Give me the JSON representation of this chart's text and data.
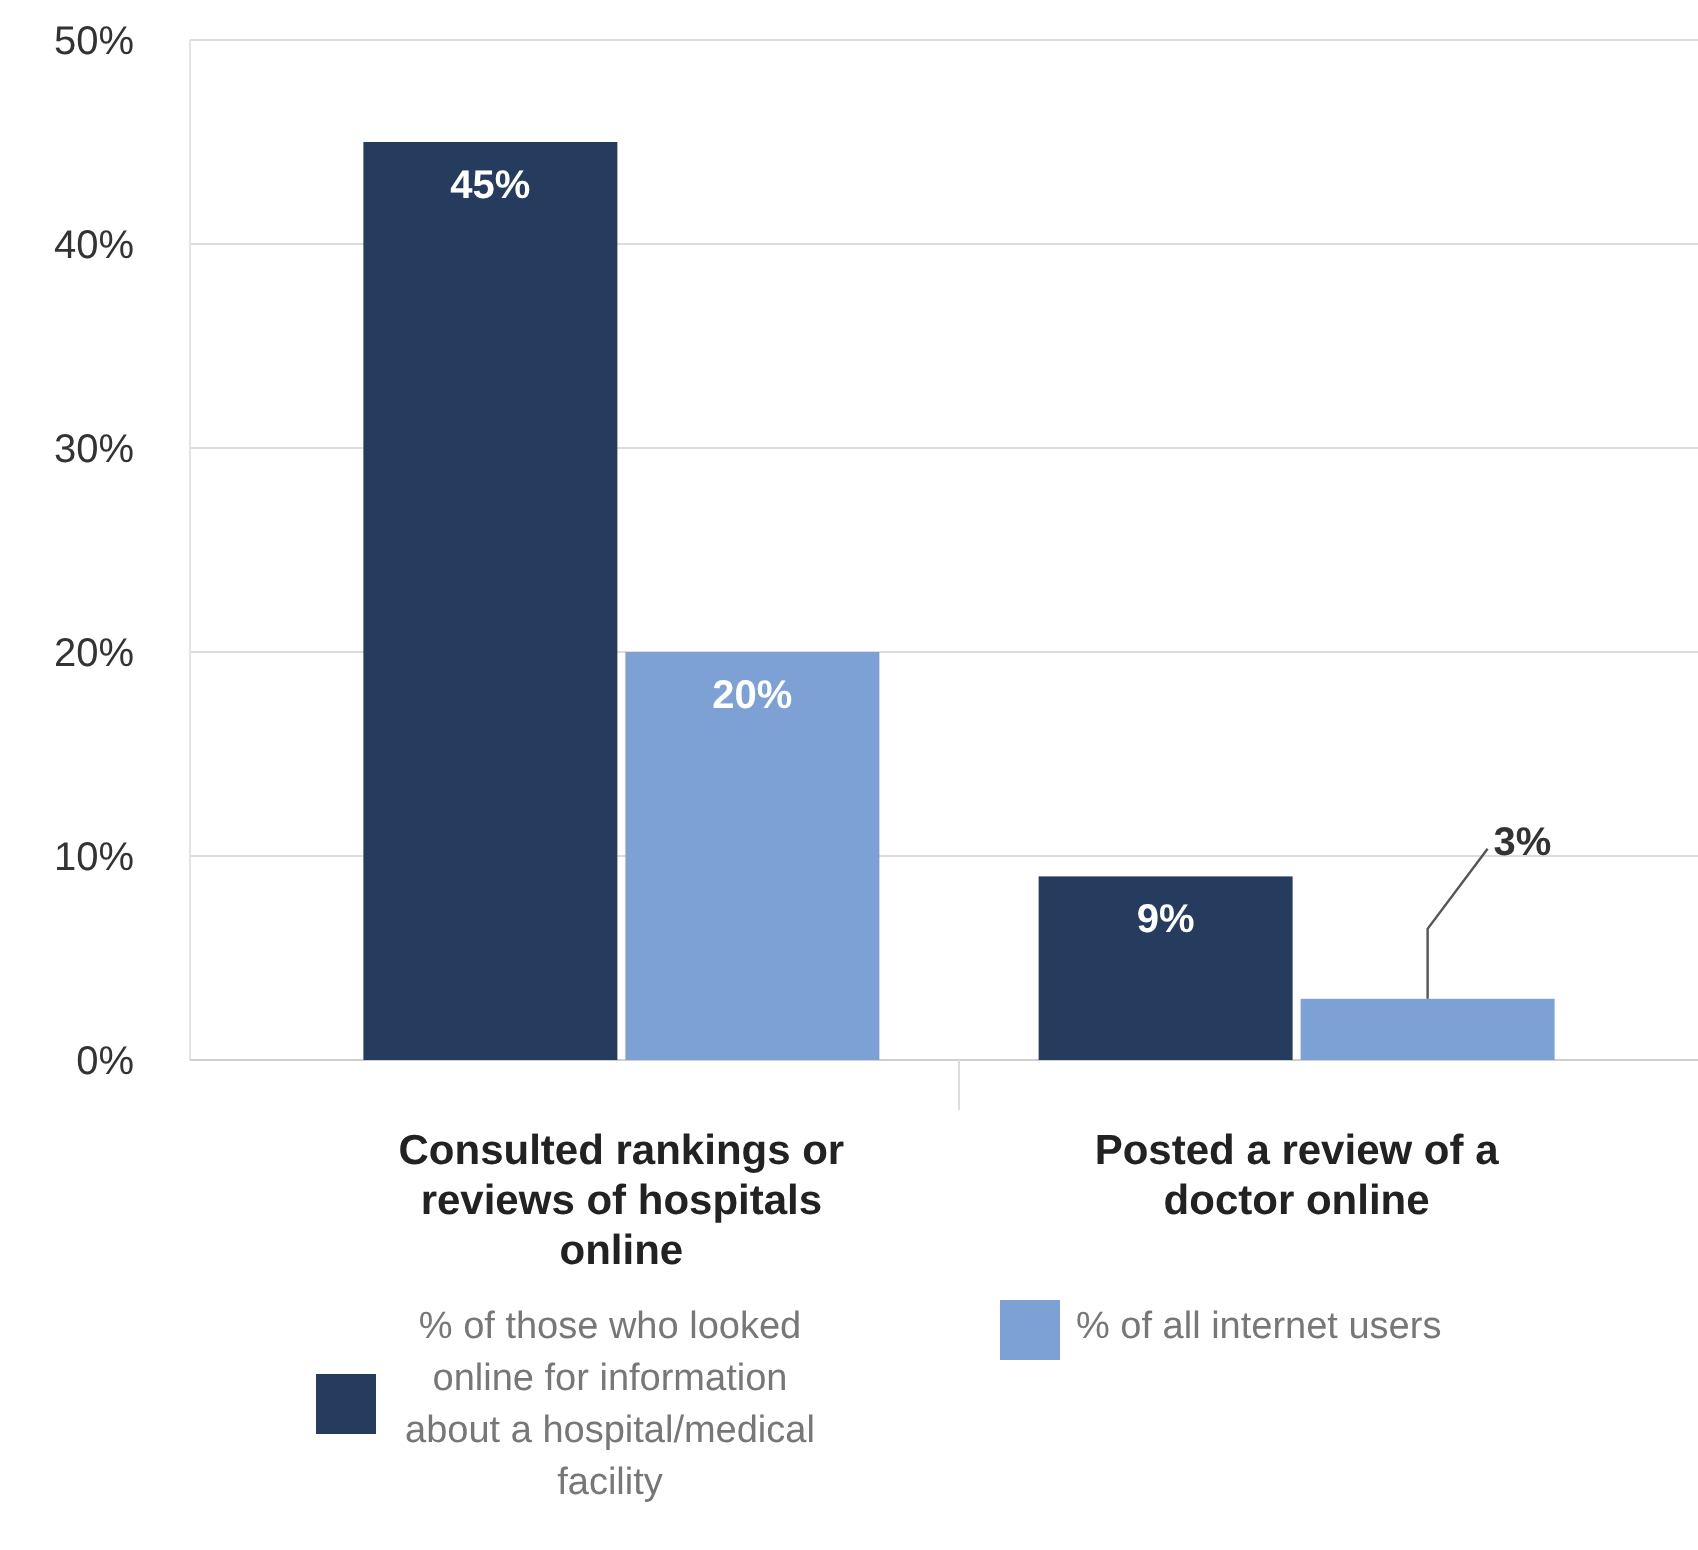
{
  "chart_data": {
    "type": "bar",
    "categories": [
      "Consulted rankings or reviews of hospitals online",
      "Posted a review of a doctor online"
    ],
    "series": [
      {
        "name": "% of those who looked online for information about a hospital/medical facility",
        "color": "#253c5e",
        "values": [
          45,
          9
        ],
        "value_labels": [
          "45%",
          "9%"
        ]
      },
      {
        "name": "% of all internet users",
        "color": "#7da1d4",
        "values": [
          20,
          3
        ],
        "value_labels": [
          "20%",
          "3%"
        ]
      }
    ],
    "ylim": [
      0,
      50
    ],
    "yticks": [
      {
        "value": 0,
        "label": "0%"
      },
      {
        "value": 10,
        "label": "10%"
      },
      {
        "value": 20,
        "label": "20%"
      },
      {
        "value": 30,
        "label": "30%"
      },
      {
        "value": 40,
        "label": "40%"
      },
      {
        "value": 50,
        "label": "50%"
      }
    ],
    "grid": "y",
    "legend": "bottom"
  }
}
